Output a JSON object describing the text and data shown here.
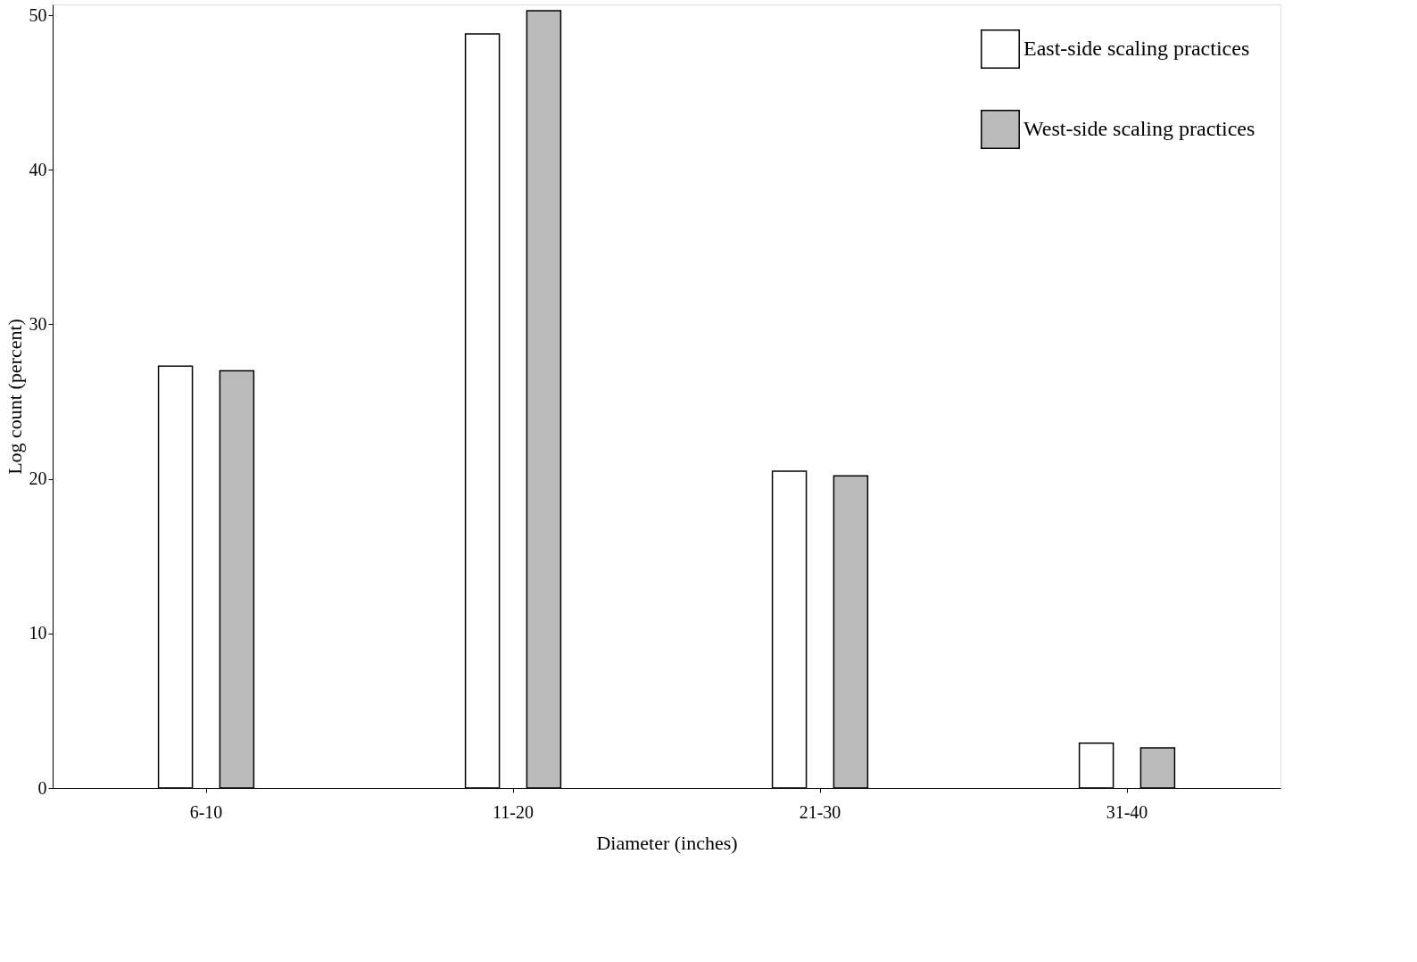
{
  "chart_data": {
    "type": "bar",
    "xlabel": "Diameter (inches)",
    "ylabel": "Log count (percent)",
    "categories": [
      "6-10",
      "11-20",
      "21-30",
      "31-40"
    ],
    "series": [
      {
        "name": "East-side scaling practices",
        "color": "#ffffff",
        "values": [
          27.3,
          48.8,
          20.5,
          2.9
        ]
      },
      {
        "name": "West-side scaling practices",
        "color": "#bbbbbb",
        "values": [
          27.0,
          50.3,
          20.2,
          2.6
        ]
      }
    ],
    "ylim": [
      0,
      50.7
    ],
    "yticks": [
      0,
      10,
      20,
      30,
      40,
      50
    ],
    "grid": false,
    "legend": "top right"
  }
}
